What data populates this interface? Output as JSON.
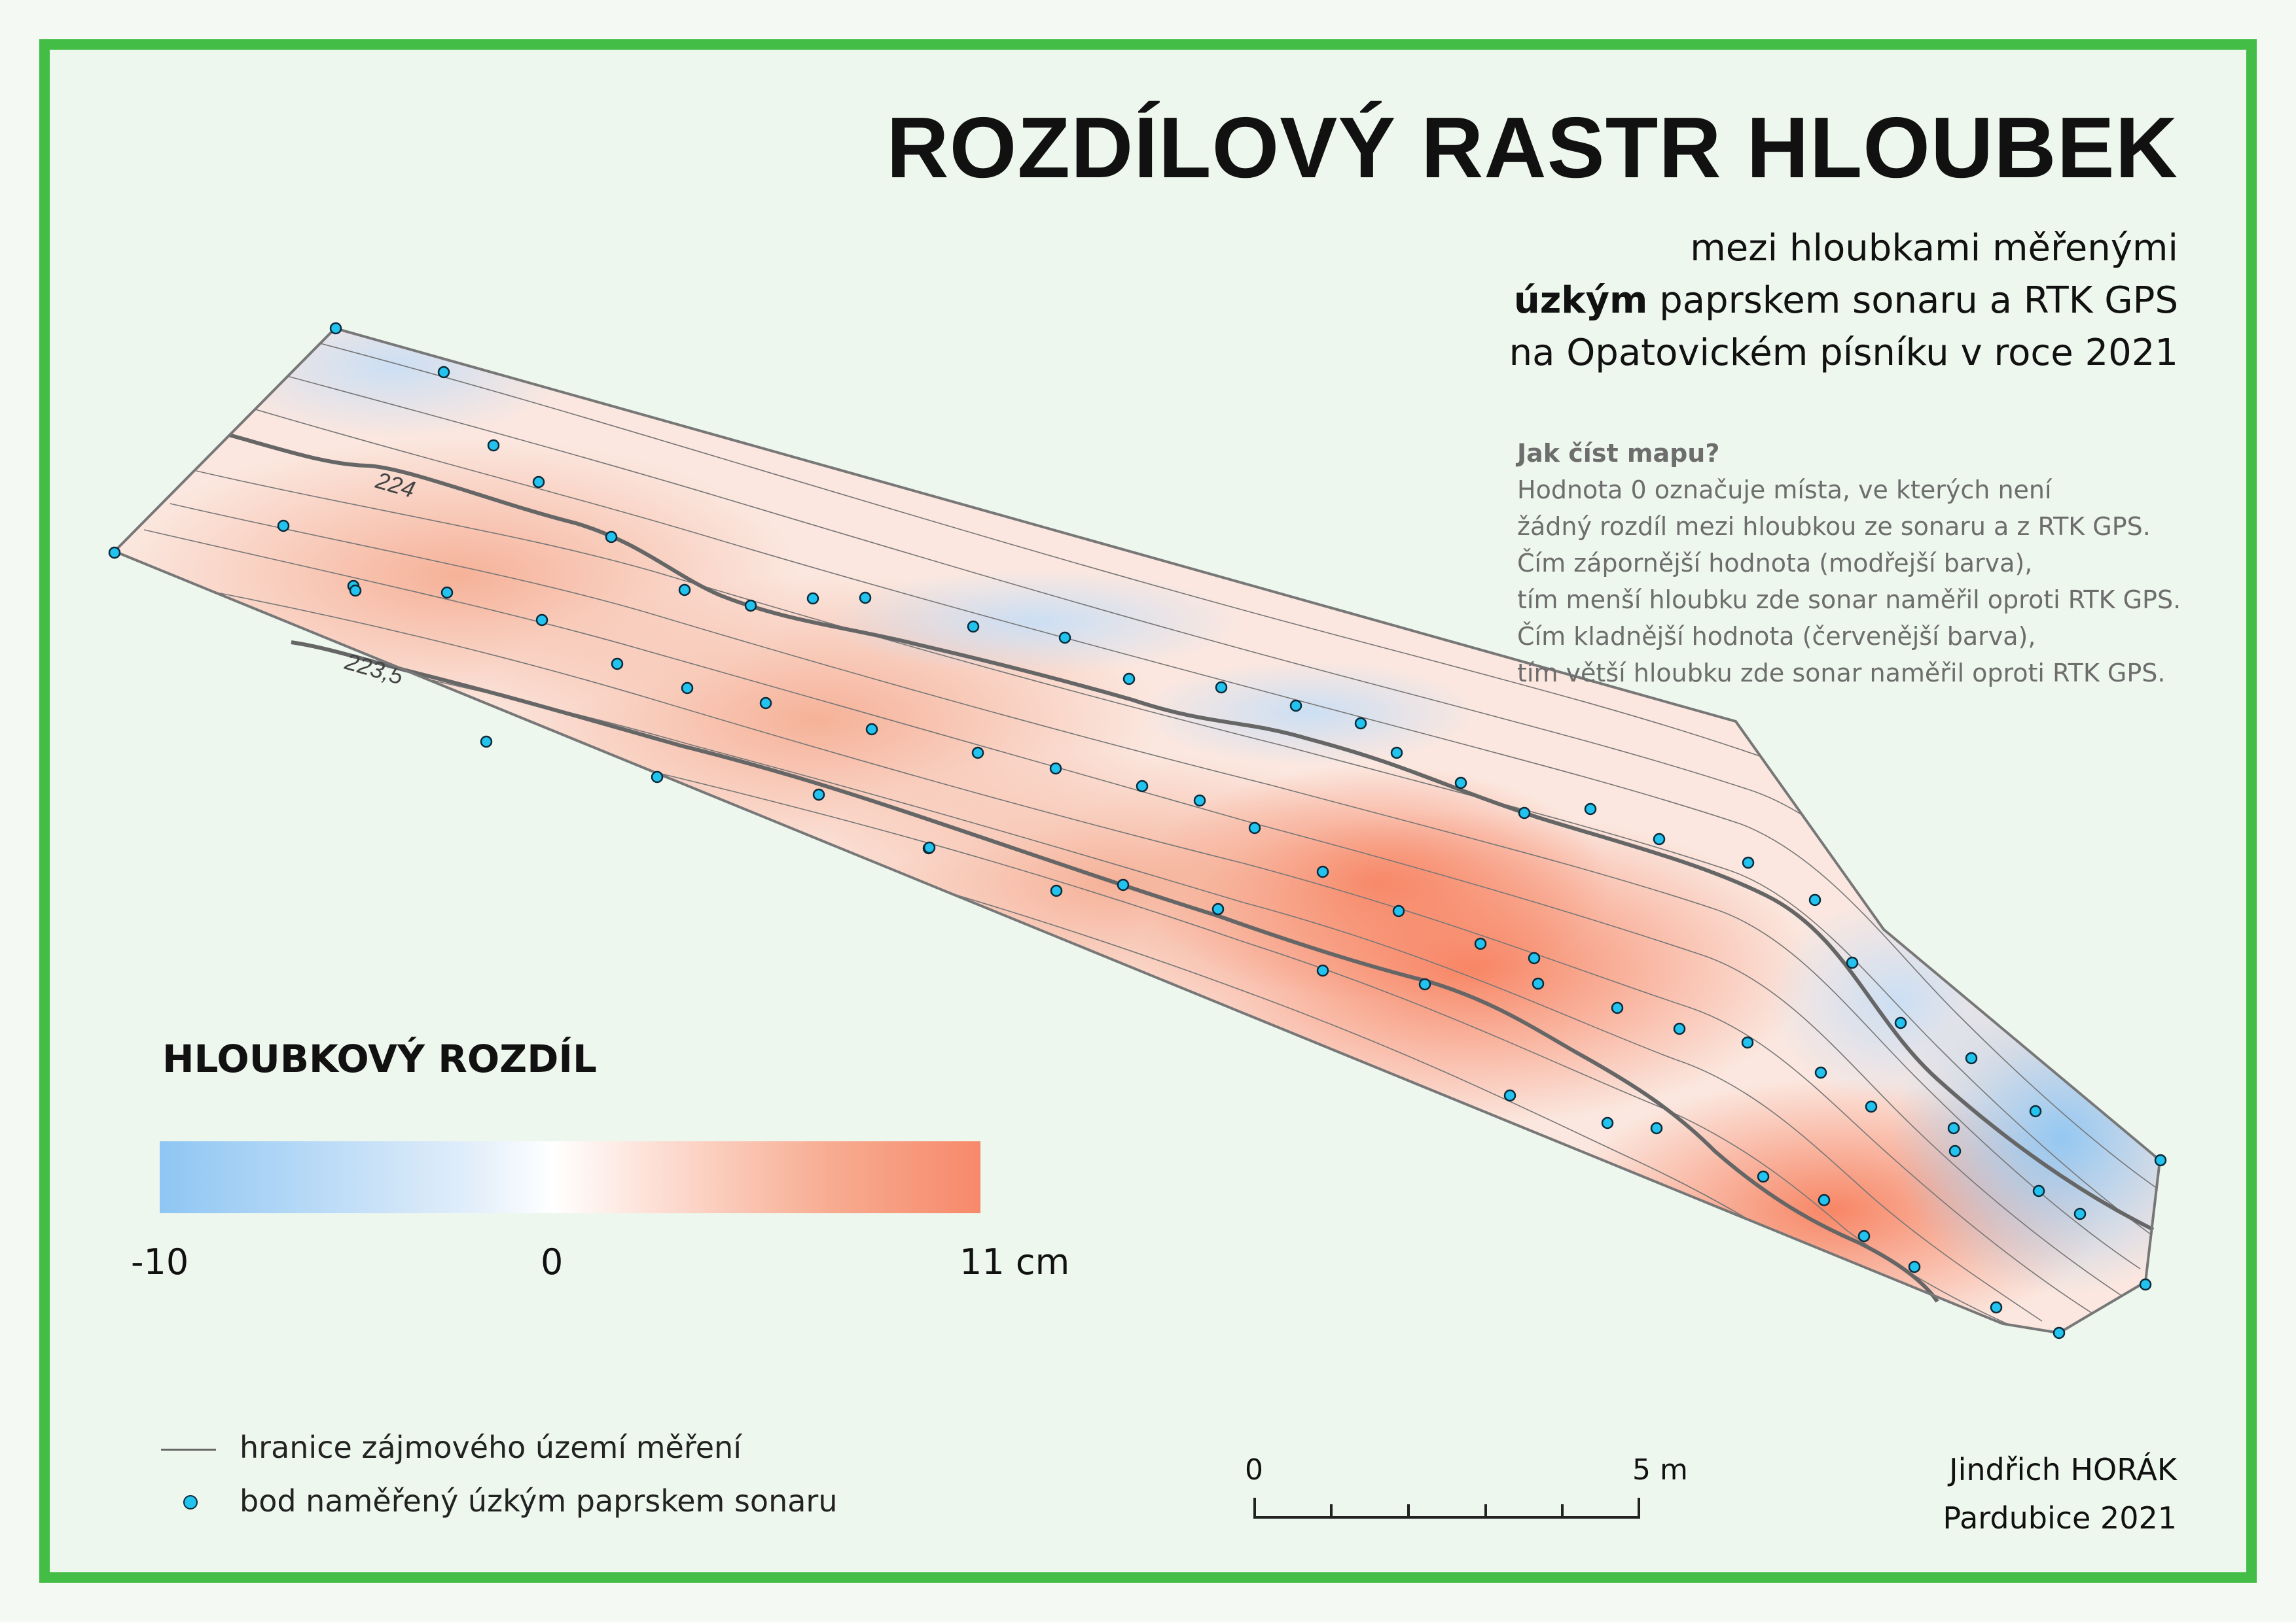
{
  "title": "ROZDÍLOVÝ RASTR HLOUBEK",
  "subtitle": {
    "line1": "mezi hloubkami měřenými",
    "line2_bold": "úzkým",
    "line2_rest": " paprskem sonaru a RTK GPS",
    "line3": "na Opatovickém písníku v roce 2021"
  },
  "howto": {
    "heading": "Jak číst mapu?",
    "lines": [
      "Hodnota 0 označuje místa, ve kterých není",
      "žádný rozdíl mezi hloubkou ze sonaru a z RTK GPS.",
      "Čím zápornější hodnota (modřejší barva),",
      "tím menší hloubku zde sonar naměřil oproti RTK GPS.",
      "Čím kladnější hodnota (červenější barva),",
      "tím větší hloubku zde sonar naměřil oproti RTK GPS."
    ]
  },
  "contour_labels": [
    "224",
    "223,5"
  ],
  "legend": {
    "title": "HLOUBKOVÝ ROZDÍL",
    "min_label": "-10",
    "mid_label": "0",
    "max_label": "11 cm",
    "ramp_colors": [
      "#8fc6f3",
      "#ffffff",
      "#f7896a"
    ],
    "items": {
      "boundary": "hranice zájmového území měření",
      "point": "bod naměřený úzkým paprskem sonaru"
    }
  },
  "scalebar": {
    "start": "0",
    "end": "5 m"
  },
  "author": {
    "name": "Jindřich HORÁK",
    "place_year": "Pardubice 2021"
  },
  "colors": {
    "frame": "#43bd45",
    "point": "#22c3ee",
    "contour": "#666666"
  }
}
